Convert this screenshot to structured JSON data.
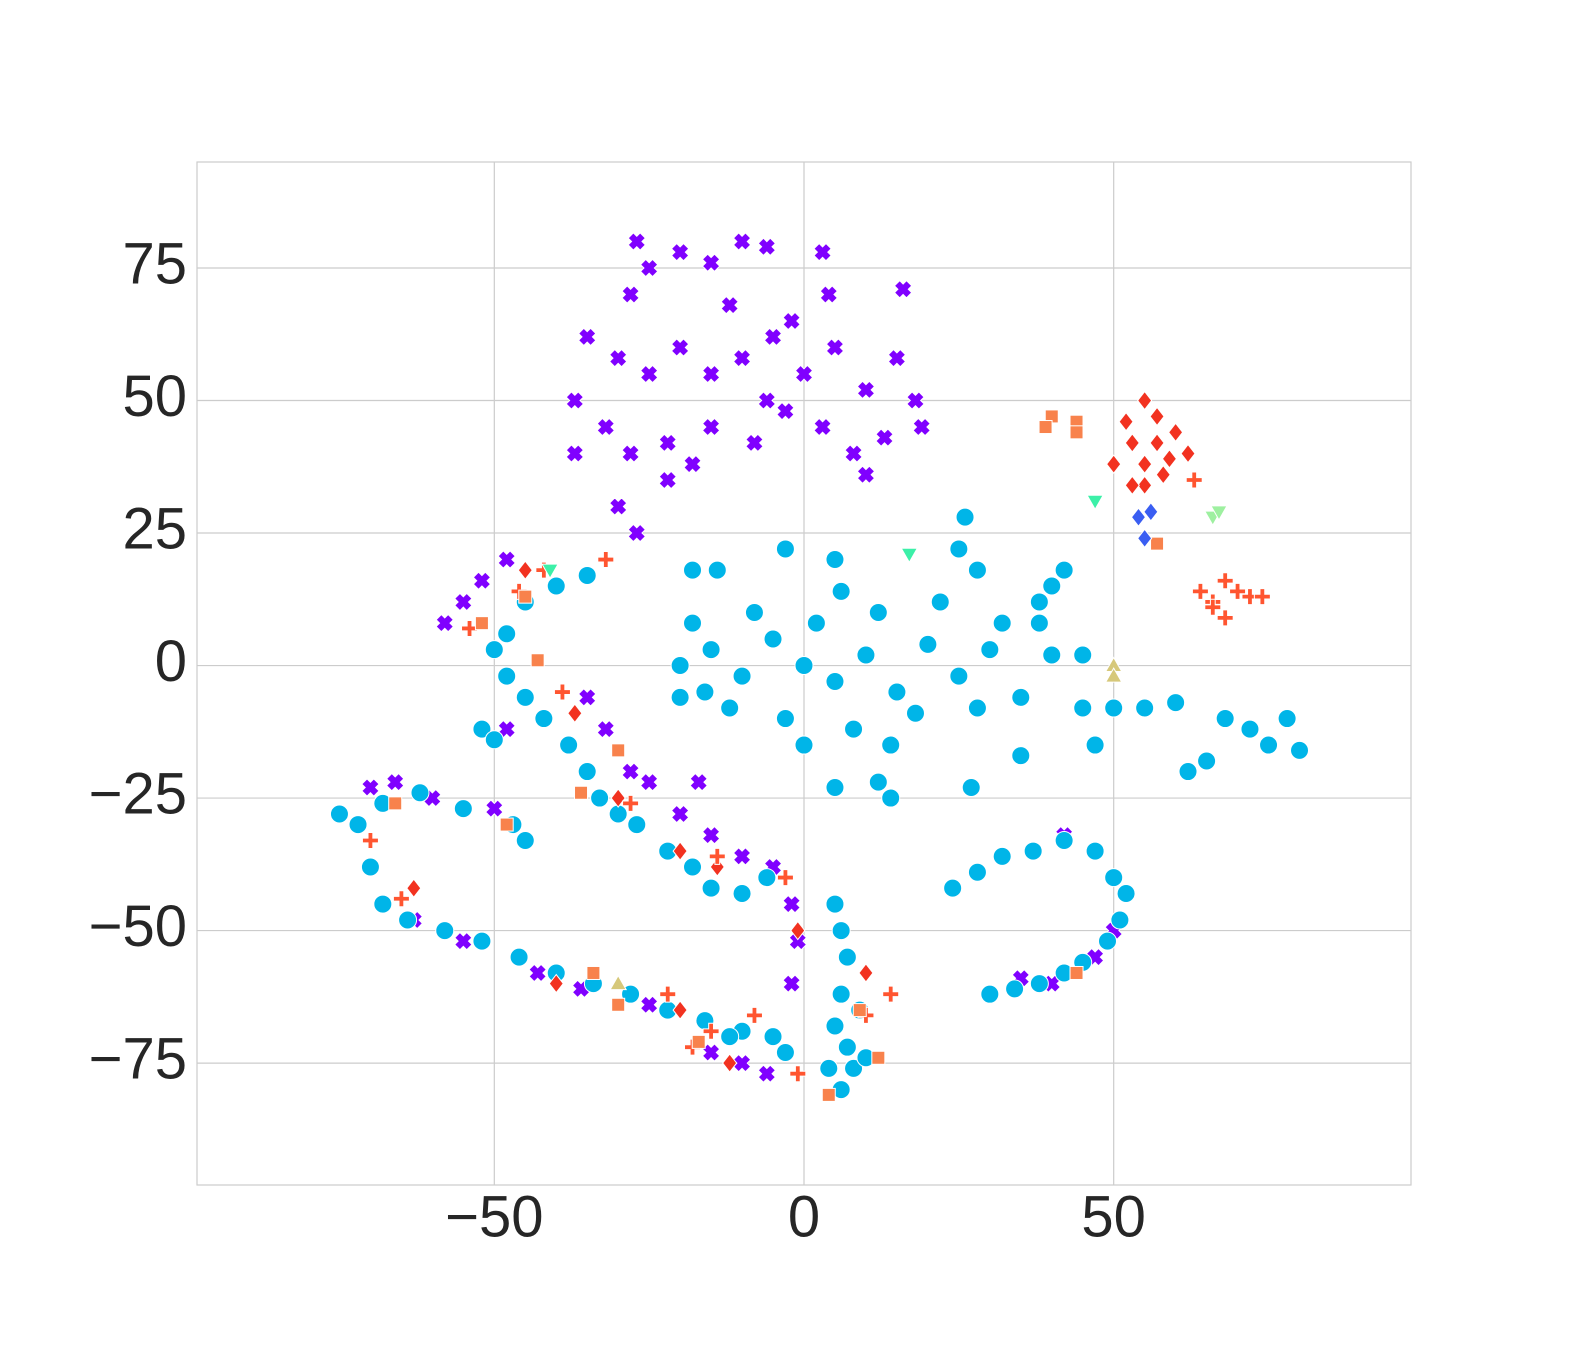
{
  "chart_data": {
    "type": "scatter",
    "xlim": [
      -98,
      98
    ],
    "ylim": [
      -98,
      95
    ],
    "xticks": [
      {
        "value": -50,
        "label": "−50"
      },
      0,
      50
    ],
    "yticks": [
      {
        "value": -75,
        "label": "−75"
      },
      {
        "value": -50,
        "label": "−50"
      },
      {
        "value": -25,
        "label": "−25"
      },
      0,
      25,
      50,
      75
    ],
    "grid": true,
    "series": [
      {
        "marker": "x",
        "color": "#8000ff",
        "x": [
          -27,
          -25,
          -20,
          -15,
          -28,
          -10,
          -6,
          4,
          -35,
          -30,
          -25,
          -20,
          -15,
          -10,
          -5,
          0,
          5,
          10,
          15,
          18,
          -37,
          -32,
          -28,
          -22,
          -15,
          -8,
          -3,
          3,
          8,
          13,
          10,
          -30,
          -27,
          -22,
          -18,
          -6,
          -2,
          3,
          16,
          -12,
          19,
          -37,
          -58,
          -55,
          -52,
          -48,
          -35,
          -32,
          -28,
          -25,
          -20,
          -15,
          -10,
          -5,
          -2,
          -1,
          -2,
          -70,
          -66,
          -60,
          -50,
          -63,
          -55,
          -43,
          -36,
          -25,
          -15,
          -10,
          -6,
          42,
          40,
          35,
          30,
          47,
          50,
          52,
          -48,
          -17
        ],
        "y": [
          80,
          75,
          78,
          76,
          70,
          80,
          79,
          70,
          62,
          58,
          55,
          60,
          55,
          58,
          62,
          55,
          60,
          52,
          58,
          50,
          50,
          45,
          40,
          42,
          45,
          42,
          48,
          45,
          40,
          43,
          36,
          30,
          25,
          35,
          38,
          50,
          65,
          78,
          71,
          68,
          45,
          40,
          8,
          12,
          16,
          20,
          -6,
          -12,
          -20,
          -22,
          -28,
          -32,
          -36,
          -38,
          -45,
          -52,
          -60,
          -23,
          -22,
          -25,
          -27,
          -48,
          -52,
          -58,
          -61,
          -64,
          -73,
          -75,
          -77,
          -32,
          -60,
          -59,
          -62,
          -55,
          -50,
          -43,
          -12,
          -22
        ]
      },
      {
        "marker": "circle",
        "color": "#00b5e8",
        "x": [
          -20,
          -15,
          -10,
          -5,
          0,
          5,
          10,
          15,
          20,
          25,
          30,
          35,
          40,
          -12,
          -3,
          8,
          18,
          28,
          -18,
          -8,
          2,
          12,
          22,
          32,
          38,
          45,
          -16,
          6,
          14,
          0,
          12,
          14,
          26,
          25,
          28,
          -14,
          -18,
          40,
          42,
          38,
          45,
          50,
          55,
          60,
          72,
          75,
          78,
          80,
          65,
          62,
          -52,
          -50,
          5,
          27,
          -20,
          5,
          -3,
          47,
          35,
          68,
          -45,
          -40,
          -35,
          -48,
          -50,
          -48,
          -45,
          -42,
          -38,
          -35,
          -33,
          -30,
          -27,
          -22,
          -18,
          -15,
          -10,
          -6,
          5,
          6,
          7,
          6,
          5,
          7,
          8,
          6,
          4,
          10,
          9,
          -75,
          -72,
          -68,
          -62,
          -55,
          -47,
          -45,
          -70,
          -68,
          -64,
          -58,
          -52,
          -46,
          -40,
          -34,
          -28,
          -22,
          -16,
          -10,
          -5,
          -12,
          -3,
          24,
          28,
          32,
          37,
          42,
          47,
          50,
          52,
          51,
          49,
          45,
          42,
          38,
          34,
          30
        ],
        "y": [
          0,
          3,
          -2,
          5,
          0,
          -3,
          2,
          -5,
          4,
          -2,
          3,
          -6,
          2,
          -8,
          -10,
          -12,
          -9,
          -8,
          8,
          10,
          8,
          10,
          12,
          8,
          8,
          2,
          -5,
          14,
          -15,
          -15,
          -22,
          -25,
          28,
          22,
          18,
          18,
          18,
          15,
          18,
          12,
          -8,
          -8,
          -8,
          -7,
          -12,
          -15,
          -10,
          -16,
          -18,
          -20,
          -12,
          -14,
          -23,
          -23,
          -6,
          20,
          22,
          -15,
          -17,
          -10,
          12,
          15,
          17,
          6,
          3,
          -2,
          -6,
          -10,
          -15,
          -20,
          -25,
          -28,
          -30,
          -35,
          -38,
          -42,
          -43,
          -40,
          -45,
          -50,
          -55,
          -62,
          -68,
          -72,
          -76,
          -80,
          -76,
          -74,
          -65,
          -28,
          -30,
          -26,
          -24,
          -27,
          -30,
          -33,
          -38,
          -45,
          -48,
          -50,
          -52,
          -55,
          -58,
          -60,
          -62,
          -65,
          -67,
          -69,
          -70,
          -70,
          -73,
          -42,
          -39,
          -36,
          -35,
          -33,
          -35,
          -40,
          -43,
          -48,
          -52,
          -56,
          -58,
          -60,
          -61,
          -62
        ]
      },
      {
        "marker": "diamond",
        "color": "#f23220",
        "x": [
          55,
          52,
          57,
          53,
          57,
          60,
          50,
          55,
          59,
          62,
          55,
          58,
          53,
          -63,
          -45,
          -37,
          -30,
          -20,
          -14,
          -1,
          -40,
          -20,
          -12,
          10
        ],
        "y": [
          50,
          46,
          47,
          42,
          42,
          44,
          38,
          38,
          39,
          40,
          34,
          36,
          34,
          -42,
          18,
          -9,
          -25,
          -35,
          -38,
          -50,
          -60,
          -65,
          -75,
          -58
        ]
      },
      {
        "marker": "plus",
        "color": "#ff5530",
        "x": [
          68,
          64,
          66,
          70,
          72,
          68,
          66,
          74,
          63,
          -42,
          -46,
          -32,
          -54,
          -39,
          -28,
          -14,
          -3,
          -70,
          -65,
          -8,
          -15,
          -1,
          10,
          14,
          -18,
          -22
        ],
        "y": [
          16,
          14,
          12,
          14,
          13,
          9,
          11,
          13,
          35,
          18,
          14,
          20,
          7,
          -5,
          -26,
          -36,
          -40,
          -33,
          -44,
          -66,
          -69,
          -77,
          -66,
          -62,
          -72,
          -62
        ]
      },
      {
        "marker": "square",
        "color": "#f8824c",
        "x": [
          40,
          39,
          44,
          44,
          57,
          -45,
          -52,
          -43,
          -36,
          -30,
          -66,
          -48,
          -30,
          -17,
          4,
          12,
          9,
          44,
          -34
        ],
        "y": [
          47,
          45,
          46,
          44,
          23,
          13,
          8,
          1,
          -24,
          -16,
          -26,
          -30,
          -64,
          -71,
          -81,
          -74,
          -65,
          -58,
          -58
        ]
      },
      {
        "marker": "triangle-down",
        "color": "#3cf0a8",
        "x": [
          47,
          -41,
          17
        ],
        "y": [
          31,
          18,
          21
        ]
      },
      {
        "marker": "triangle-up",
        "color": "#d6c87a",
        "x": [
          50,
          50,
          -30
        ],
        "y": [
          0,
          -2,
          -60
        ]
      },
      {
        "marker": "diamond",
        "color": "#3a5ef2",
        "x": [
          54,
          56,
          55
        ],
        "y": [
          28,
          29,
          24
        ]
      },
      {
        "marker": "triangle-down",
        "color": "#9ef0a0",
        "x": [
          66,
          67
        ],
        "y": [
          28,
          29
        ]
      }
    ]
  }
}
